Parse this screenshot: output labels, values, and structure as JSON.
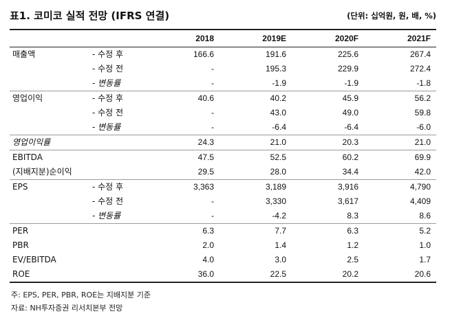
{
  "title": "표1. 코미코 실적 전망 (IFRS 연결)",
  "unit": "(단위: 십억원, 원, 배, %)",
  "columns": [
    "2018",
    "2019E",
    "2020F",
    "2021F"
  ],
  "rows": [
    {
      "label": "매출액",
      "sub": "- 수정 후",
      "values": [
        "166.6",
        "191.6",
        "225.6",
        "267.4"
      ],
      "sep": true,
      "italic": false
    },
    {
      "label": "",
      "sub": "- 수정 전",
      "values": [
        "-",
        "195.3",
        "229.9",
        "272.4"
      ],
      "sep": false,
      "italic": false
    },
    {
      "label": "",
      "sub": "- 변동률",
      "values": [
        "-",
        "-1.9",
        "-1.9",
        "-1.8"
      ],
      "sep": false,
      "italic": true
    },
    {
      "label": "영업이익",
      "sub": "- 수정 후",
      "values": [
        "40.6",
        "40.2",
        "45.9",
        "56.2"
      ],
      "sep": true,
      "italic": false
    },
    {
      "label": "",
      "sub": "- 수정 전",
      "values": [
        "-",
        "43.0",
        "49.0",
        "59.8"
      ],
      "sep": false,
      "italic": false
    },
    {
      "label": "",
      "sub": "- 변동률",
      "values": [
        "-",
        "-6.4",
        "-6.4",
        "-6.0"
      ],
      "sep": false,
      "italic": true
    },
    {
      "label": "영업이익률",
      "sub": "",
      "values": [
        "24.3",
        "21.0",
        "20.3",
        "21.0"
      ],
      "sep": true,
      "italic": true
    },
    {
      "label": "EBITDA",
      "sub": "",
      "values": [
        "47.5",
        "52.5",
        "60.2",
        "69.9"
      ],
      "sep": true,
      "italic": false
    },
    {
      "label": "(지배지분)순이익",
      "sub": "",
      "values": [
        "29.5",
        "28.0",
        "34.4",
        "42.0"
      ],
      "sep": false,
      "italic": false
    },
    {
      "label": "EPS",
      "sub": "- 수정 후",
      "values": [
        "3,363",
        "3,189",
        "3,916",
        "4,790"
      ],
      "sep": true,
      "italic": false
    },
    {
      "label": "",
      "sub": "- 수정 전",
      "values": [
        "-",
        "3,330",
        "3,617",
        "4,409"
      ],
      "sep": false,
      "italic": false
    },
    {
      "label": "",
      "sub": "- 변동률",
      "values": [
        "-",
        "-4.2",
        "8.3",
        "8.6"
      ],
      "sep": false,
      "italic": true
    },
    {
      "label": "PER",
      "sub": "",
      "values": [
        "6.3",
        "7.7",
        "6.3",
        "5.2"
      ],
      "sep": true,
      "italic": false
    },
    {
      "label": "PBR",
      "sub": "",
      "values": [
        "2.0",
        "1.4",
        "1.2",
        "1.0"
      ],
      "sep": false,
      "italic": false
    },
    {
      "label": "EV/EBITDA",
      "sub": "",
      "values": [
        "4.0",
        "3.0",
        "2.5",
        "1.7"
      ],
      "sep": false,
      "italic": false
    },
    {
      "label": "ROE",
      "sub": "",
      "values": [
        "36.0",
        "22.5",
        "20.2",
        "20.6"
      ],
      "sep": false,
      "italic": false
    }
  ],
  "notes": [
    "주: EPS, PER, PBR, ROE는 지배지분 기준",
    "자료: NH투자증권 리서치본부 전망"
  ]
}
